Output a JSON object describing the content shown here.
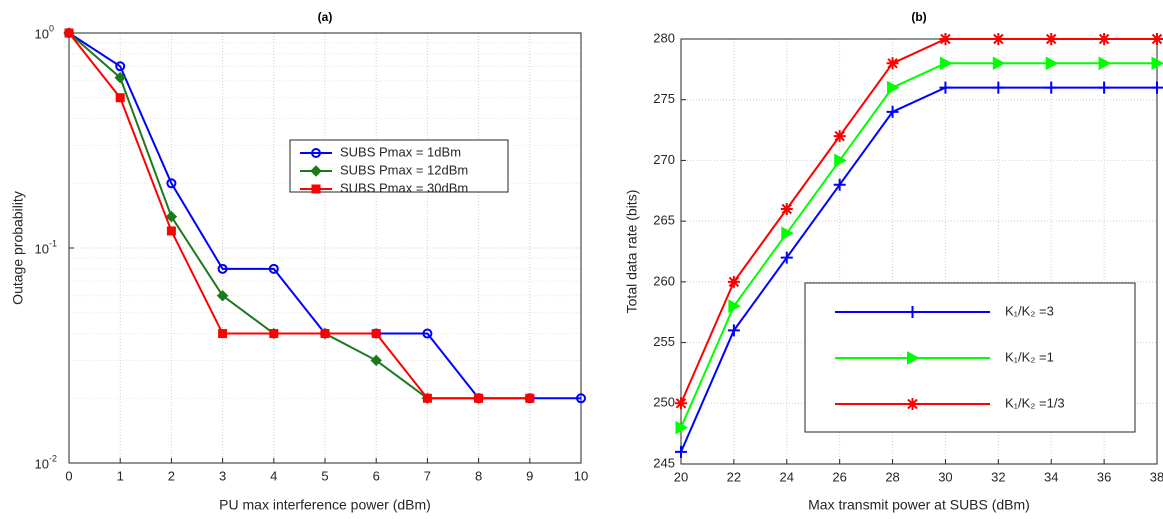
{
  "chart_data": [
    {
      "type": "line",
      "title": "(a)",
      "x_label": "PU max interference power (dBm)",
      "y_label": "Outage probability",
      "x": [
        0,
        1,
        2,
        3,
        4,
        5,
        6,
        7,
        8,
        9,
        10
      ],
      "xlim": [
        0,
        10
      ],
      "xticks": [
        0,
        1,
        2,
        3,
        4,
        5,
        6,
        7,
        8,
        9,
        10
      ],
      "ylim": [
        0.01,
        1
      ],
      "log_y": true,
      "grid": true,
      "yticks": [
        {
          "value": 0.01,
          "label": "10",
          "exponent": "-2"
        },
        {
          "value": 0.1,
          "label": "10",
          "exponent": "-1"
        },
        {
          "value": 1,
          "label": "10",
          "exponent": "0"
        }
      ],
      "legend_position": "upper right",
      "series": [
        {
          "name": "SUBS Pmax = 1dBm",
          "color": "#0000ff",
          "marker": "circle",
          "values": [
            1,
            0.7,
            0.2,
            0.08,
            0.08,
            0.04,
            0.04,
            0.04,
            0.02,
            0.02,
            0.02
          ]
        },
        {
          "name": "SUBS Pmax = 12dBm",
          "color": "#1b7a1b",
          "marker": "diamond",
          "values": [
            1,
            0.62,
            0.14,
            0.06,
            0.04,
            0.04,
            0.03,
            0.02,
            0.02,
            null,
            null
          ]
        },
        {
          "name": "SUBS Pmax = 30dBm",
          "color": "#ff0000",
          "marker": "square",
          "values": [
            1,
            0.5,
            0.12,
            0.04,
            0.04,
            0.04,
            0.04,
            0.02,
            0.02,
            0.02,
            null
          ]
        }
      ]
    },
    {
      "type": "line",
      "title": "(b)",
      "x_label": "Max transmit power at SUBS (dBm)",
      "y_label": "Total data rate (bits)",
      "x": [
        20,
        22,
        24,
        26,
        28,
        30,
        32,
        34,
        36,
        38
      ],
      "xlim": [
        20,
        38
      ],
      "xticks": [
        20,
        22,
        24,
        26,
        28,
        30,
        32,
        34,
        36,
        38
      ],
      "ylim": [
        245,
        280
      ],
      "yticks": [
        245,
        250,
        255,
        260,
        265,
        270,
        275,
        280
      ],
      "grid": true,
      "legend_position": "lower right",
      "series": [
        {
          "name": "K₁/K₂ =3",
          "color": "#0000ff",
          "marker": "plus",
          "values": [
            246,
            256,
            262,
            268,
            274,
            276,
            276,
            276,
            276,
            276
          ]
        },
        {
          "name": "K₁/K₂ =1",
          "color": "#00ff00",
          "marker": "triangle-right",
          "values": [
            248,
            258,
            264,
            270,
            276,
            278,
            278,
            278,
            278,
            278
          ]
        },
        {
          "name": "K₁/K₂ =1/3",
          "color": "#ff0000",
          "marker": "star",
          "values": [
            250,
            260,
            266,
            272,
            278,
            280,
            280,
            280,
            280,
            280
          ]
        }
      ]
    }
  ]
}
